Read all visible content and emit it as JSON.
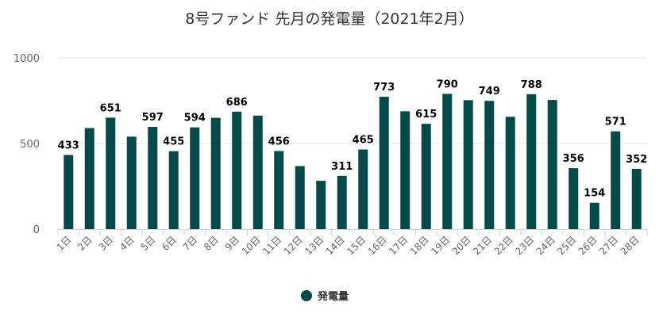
{
  "chart_data": {
    "type": "bar",
    "title": "8号ファンド 先月の発電量（2021年2月）",
    "categories": [
      "1日",
      "2日",
      "3日",
      "4日",
      "5日",
      "6日",
      "7日",
      "8日",
      "9日",
      "10日",
      "11日",
      "12日",
      "13日",
      "14日",
      "15日",
      "16日",
      "17日",
      "18日",
      "19日",
      "20日",
      "21日",
      "22日",
      "23日",
      "24日",
      "25日",
      "26日",
      "27日",
      "28日"
    ],
    "series": [
      {
        "name": "発電量",
        "color": "#044a48",
        "values": [
          433,
          590,
          651,
          540,
          597,
          455,
          594,
          650,
          686,
          663,
          456,
          368,
          282,
          311,
          465,
          773,
          688,
          615,
          790,
          753,
          749,
          656,
          788,
          754,
          356,
          154,
          571,
          352
        ],
        "labeled": [
          0,
          2,
          4,
          5,
          6,
          8,
          10,
          13,
          14,
          15,
          17,
          18,
          20,
          22,
          24,
          25,
          26,
          27
        ]
      }
    ],
    "yticks": [
      0,
      500,
      1000
    ],
    "ylim": [
      0,
      1000
    ],
    "grid": true,
    "legend": "bottom-center"
  }
}
